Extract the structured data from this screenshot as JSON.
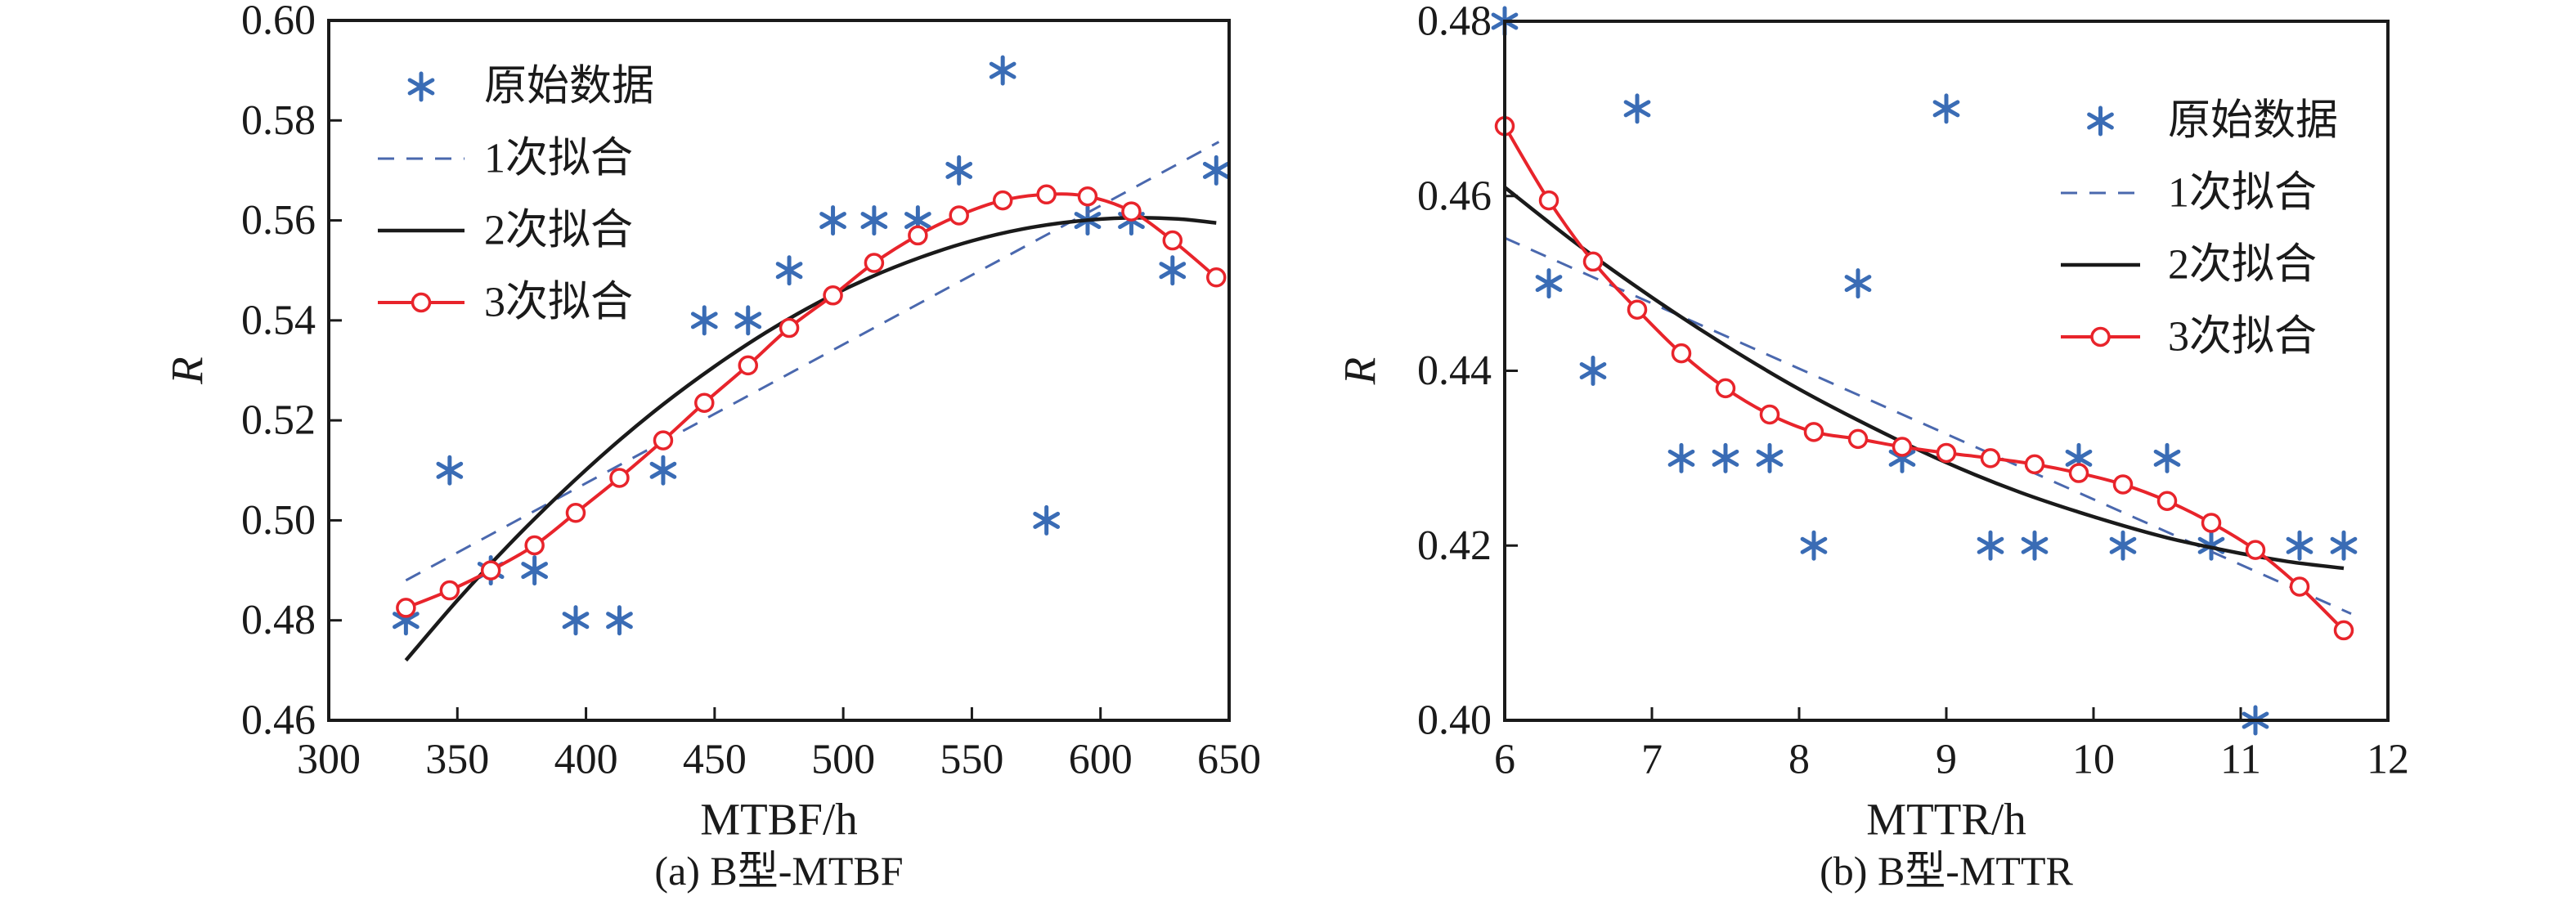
{
  "figure": {
    "background": "#ffffff",
    "colors": {
      "scatter_blue": "#3A6CB5",
      "linear_dashed_blue": "#4A68AE",
      "quadratic_black": "#1A1A1A",
      "cubic_red": "#E8242B",
      "frame": "#1A1A1A",
      "text": "#1A1A1A"
    }
  },
  "chart_data": [
    {
      "type": "scatter",
      "title": "(a) B型-MTBF",
      "xlabel": "MTBF/h",
      "ylabel": "R",
      "xlim": [
        300,
        650
      ],
      "ylim": [
        0.46,
        0.6
      ],
      "x_ticks": [
        "300",
        "350",
        "400",
        "450",
        "500",
        "550",
        "600",
        "650"
      ],
      "y_ticks": [
        "0.46",
        "0.48",
        "0.50",
        "0.52",
        "0.54",
        "0.56",
        "0.58",
        "0.60"
      ],
      "grid": "off",
      "legend_position": "upper-left",
      "legend": [
        "原始数据",
        "1次拟合",
        "2次拟合",
        "3次拟合"
      ],
      "series": [
        {
          "name": "原始数据",
          "kind": "scatter",
          "marker": "asterisk",
          "x": [
            330,
            347,
            363,
            380,
            396,
            413,
            430,
            446,
            463,
            479,
            496,
            512,
            529,
            545,
            562,
            579,
            595,
            612,
            628,
            645
          ],
          "y": [
            0.48,
            0.51,
            0.49,
            0.49,
            0.48,
            0.48,
            0.51,
            0.54,
            0.54,
            0.55,
            0.56,
            0.56,
            0.56,
            0.57,
            0.59,
            0.5,
            0.56,
            0.56,
            0.55,
            0.57
          ]
        },
        {
          "name": "1次拟合",
          "kind": "line",
          "style": "dashed",
          "x": [
            330,
            646
          ],
          "y": [
            0.488,
            0.5757
          ]
        },
        {
          "name": "2次拟合",
          "kind": "line",
          "style": "solid-smooth",
          "x": [
            330,
            350,
            370,
            390,
            410,
            430,
            450,
            470,
            490,
            510,
            530,
            550,
            570,
            590,
            610,
            630,
            645
          ],
          "y": [
            0.472,
            0.484,
            0.4951,
            0.5053,
            0.5147,
            0.5232,
            0.5308,
            0.5376,
            0.5435,
            0.5485,
            0.5526,
            0.5559,
            0.5583,
            0.5598,
            0.5605,
            0.5603,
            0.5595
          ]
        },
        {
          "name": "3次拟合",
          "kind": "line-marker",
          "style": "solid",
          "marker": "circle",
          "x": [
            330,
            347,
            363,
            380,
            396,
            413,
            430,
            446,
            463,
            479,
            496,
            512,
            529,
            545,
            562,
            579,
            595,
            612,
            628,
            645
          ],
          "y": [
            0.4825,
            0.486,
            0.49,
            0.495,
            0.5015,
            0.5085,
            0.516,
            0.5235,
            0.531,
            0.5385,
            0.545,
            0.5515,
            0.557,
            0.561,
            0.564,
            0.5652,
            0.5648,
            0.5618,
            0.556,
            0.5486
          ]
        }
      ]
    },
    {
      "type": "scatter",
      "title": "(b) B型-MTTR",
      "xlabel": "MTTR/h",
      "ylabel": "R",
      "xlim": [
        6,
        12
      ],
      "ylim": [
        0.4,
        0.48
      ],
      "x_ticks": [
        "6",
        "7",
        "8",
        "9",
        "10",
        "11",
        "12"
      ],
      "y_ticks": [
        "0.40",
        "0.42",
        "0.44",
        "0.46",
        "0.48"
      ],
      "grid": "off",
      "legend_position": "upper-right",
      "legend": [
        "原始数据",
        "1次拟合",
        "2次拟合",
        "3次拟合"
      ],
      "series": [
        {
          "name": "原始数据",
          "kind": "scatter",
          "marker": "asterisk",
          "x": [
            6.0,
            6.3,
            6.6,
            6.9,
            7.2,
            7.5,
            7.8,
            8.1,
            8.4,
            8.7,
            9.0,
            9.3,
            9.6,
            9.9,
            10.2,
            10.5,
            10.8,
            11.1,
            11.4,
            11.7
          ],
          "y": [
            0.48,
            0.45,
            0.44,
            0.47,
            0.43,
            0.43,
            0.43,
            0.42,
            0.45,
            0.43,
            0.47,
            0.42,
            0.42,
            0.43,
            0.42,
            0.43,
            0.42,
            0.4,
            0.42,
            0.42
          ]
        },
        {
          "name": "1次拟合",
          "kind": "line",
          "style": "dashed",
          "x": [
            6.0,
            11.75
          ],
          "y": [
            0.4552,
            0.4122
          ]
        },
        {
          "name": "2次拟合",
          "kind": "line",
          "style": "solid-smooth",
          "x": [
            6.0,
            6.5,
            7.0,
            7.5,
            8.0,
            8.5,
            9.0,
            9.5,
            10.0,
            10.5,
            11.0,
            11.35,
            11.7
          ],
          "y": [
            0.461,
            0.4544,
            0.4484,
            0.4429,
            0.4379,
            0.4335,
            0.4295,
            0.4261,
            0.4233,
            0.4209,
            0.4191,
            0.4181,
            0.4174
          ]
        },
        {
          "name": "3次拟合",
          "kind": "line-marker",
          "style": "solid",
          "marker": "circle",
          "x": [
            6.0,
            6.3,
            6.6,
            6.9,
            7.2,
            7.5,
            7.8,
            8.1,
            8.4,
            8.7,
            9.0,
            9.3,
            9.6,
            9.9,
            10.2,
            10.5,
            10.8,
            11.1,
            11.4,
            11.7
          ],
          "y": [
            0.468,
            0.4595,
            0.4525,
            0.447,
            0.442,
            0.438,
            0.435,
            0.433,
            0.4322,
            0.4313,
            0.4306,
            0.43,
            0.4293,
            0.4283,
            0.427,
            0.4251,
            0.4226,
            0.4195,
            0.4153,
            0.4103
          ]
        }
      ]
    }
  ]
}
